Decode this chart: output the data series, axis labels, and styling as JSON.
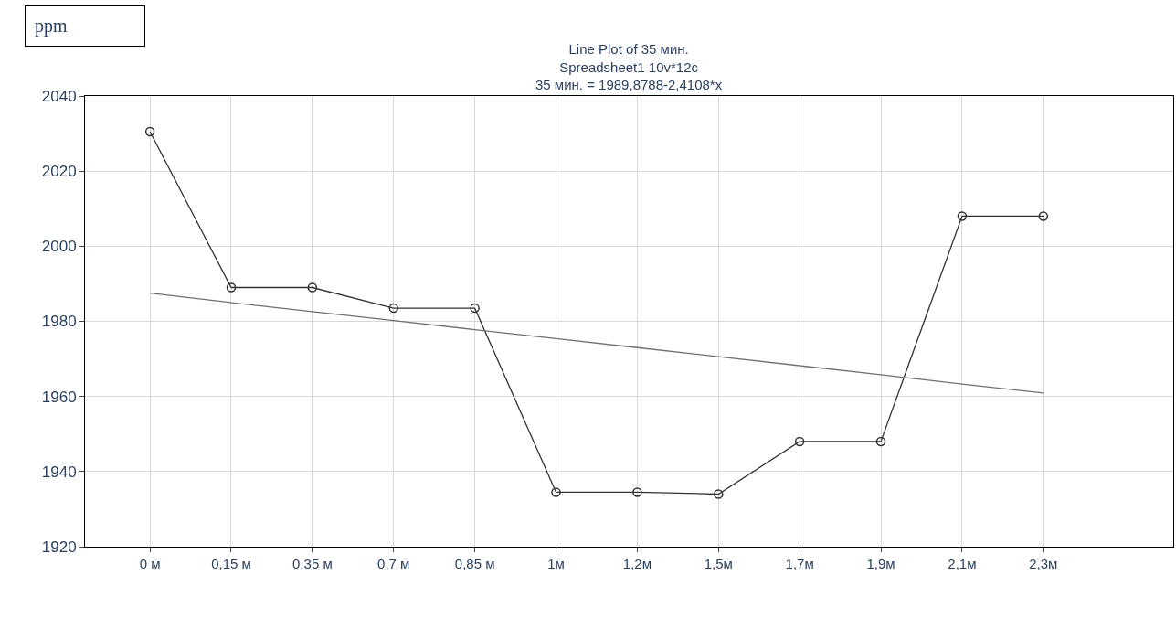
{
  "chart_data": {
    "type": "line",
    "title": "Line Plot of 35 мин.",
    "subtitle": "Spreadsheet1 10v*12c",
    "annotations": [
      "35 мин. = 1989,8788-2,4108*x",
      "ppm"
    ],
    "categories": [
      "0 м",
      "0,15 м",
      "0,35 м",
      "0,7 м",
      "0,85 м",
      "1м",
      "1,2м",
      "1,5м",
      "1,7м",
      "1,9м",
      "2,1м",
      "2,3м"
    ],
    "ylim": [
      1920,
      2040
    ],
    "yticks": [
      1920,
      1940,
      1960,
      1980,
      2000,
      2020,
      2040
    ],
    "grid": true,
    "marker": "circle",
    "line_style": "solid",
    "series": [
      {
        "color": "#333333",
        "values": [
          2030.5,
          1989,
          1989,
          1983.5,
          1983.5,
          1934.5,
          1934.5,
          1934,
          1948,
          1948,
          2008,
          2008
        ]
      },
      {
        "type": "line",
        "marker": "none",
        "color": "#707070",
        "values": [
          1987.5,
          1985,
          1982.6,
          1980.2,
          1977.8,
          1975.4,
          1973,
          1970.6,
          1968.2,
          1965.8,
          1963.3,
          1960.9
        ]
      }
    ]
  }
}
